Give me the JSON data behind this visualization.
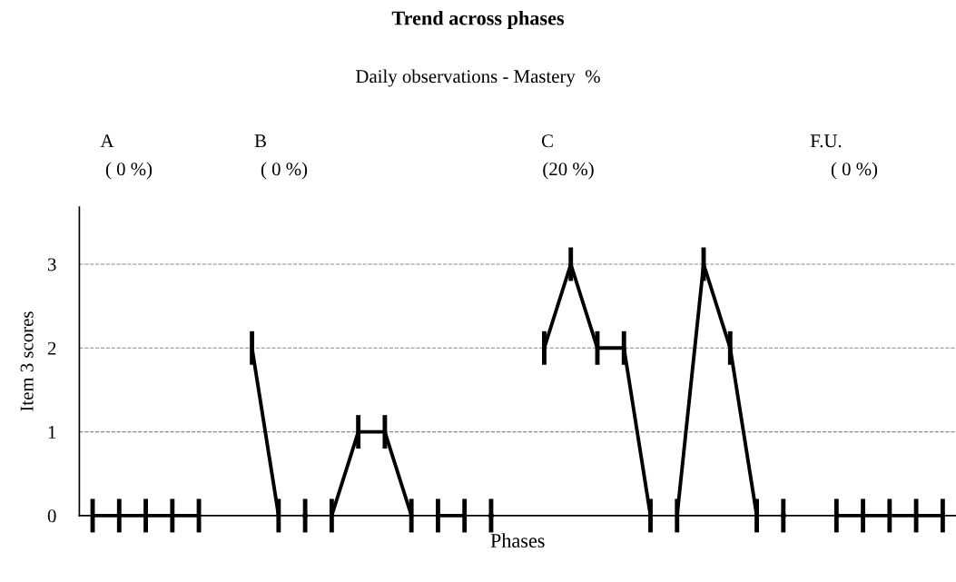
{
  "chart_data": {
    "type": "line",
    "title": "Trend across phases",
    "subtitle": "Daily observations - Mastery  %",
    "xlabel": "Phases",
    "ylabel": "Item 3 scores",
    "annotations": [
      "A",
      "( 0 %)",
      "B",
      "( 0 %)",
      "C",
      "(20 %)",
      "F.U.",
      "( 0 %)"
    ],
    "categories": [
      null,
      null,
      null,
      null,
      null,
      null,
      null,
      null,
      null,
      null,
      null,
      null,
      null,
      null,
      null,
      null,
      null,
      null,
      null,
      null,
      null,
      null,
      null,
      null,
      null,
      null,
      null,
      null,
      null,
      null,
      null,
      null,
      null
    ],
    "series": [
      {
        "color": "#000000",
        "values": [
          0,
          0,
          0,
          0,
          0,
          null,
          null,
          null,
          null,
          null,
          null,
          null,
          null,
          null,
          null,
          null,
          null,
          null,
          null,
          null,
          null,
          null,
          null,
          null,
          null,
          null,
          null,
          null,
          null,
          null,
          null,
          null,
          null
        ],
        "errors": [
          0.2,
          0.2,
          0.2,
          0.2,
          0.2,
          null,
          null,
          null,
          null,
          null,
          null,
          null,
          null,
          null,
          null,
          null,
          null,
          null,
          null,
          null,
          null,
          null,
          null,
          null,
          null,
          null,
          null,
          null,
          null,
          null,
          null,
          null,
          null
        ]
      },
      {
        "color": "#000000",
        "values": [
          null,
          null,
          null,
          null,
          null,
          null,
          2,
          0,
          null,
          null,
          null,
          null,
          null,
          null,
          null,
          null,
          null,
          null,
          null,
          null,
          null,
          null,
          null,
          null,
          null,
          null,
          null,
          null,
          null,
          null,
          null,
          null,
          null
        ],
        "errors": [
          null,
          null,
          null,
          null,
          null,
          null,
          0.2,
          0.2,
          null,
          null,
          null,
          null,
          null,
          null,
          null,
          null,
          null,
          null,
          null,
          null,
          null,
          null,
          null,
          null,
          null,
          null,
          null,
          null,
          null,
          null,
          null,
          null,
          null
        ]
      },
      {
        "type": "scatter",
        "color": "#000000",
        "values": [
          null,
          null,
          null,
          null,
          null,
          null,
          null,
          null,
          0,
          null,
          null,
          null,
          null,
          null,
          null,
          null,
          null,
          null,
          null,
          null,
          null,
          null,
          null,
          null,
          null,
          null,
          null,
          null,
          null,
          null,
          null,
          null,
          null
        ],
        "errors": [
          null,
          null,
          null,
          null,
          null,
          null,
          null,
          null,
          0.2,
          null,
          null,
          null,
          null,
          null,
          null,
          null,
          null,
          null,
          null,
          null,
          null,
          null,
          null,
          null,
          null,
          null,
          null,
          null,
          null,
          null,
          null,
          null,
          null
        ]
      },
      {
        "color": "#000000",
        "values": [
          null,
          null,
          null,
          null,
          null,
          null,
          null,
          null,
          null,
          0,
          1,
          1,
          0,
          null,
          null,
          null,
          null,
          null,
          null,
          null,
          null,
          null,
          null,
          null,
          null,
          null,
          null,
          null,
          null,
          null,
          null,
          null,
          null
        ],
        "errors": [
          null,
          null,
          null,
          null,
          null,
          null,
          null,
          null,
          null,
          0.2,
          0.2,
          0.2,
          0.2,
          null,
          null,
          null,
          null,
          null,
          null,
          null,
          null,
          null,
          null,
          null,
          null,
          null,
          null,
          null,
          null,
          null,
          null,
          null,
          null
        ]
      },
      {
        "color": "#000000",
        "values": [
          null,
          null,
          null,
          null,
          null,
          null,
          null,
          null,
          null,
          null,
          null,
          null,
          null,
          0,
          0,
          null,
          null,
          null,
          null,
          null,
          null,
          null,
          null,
          null,
          null,
          null,
          null,
          null,
          null,
          null,
          null,
          null,
          null
        ],
        "errors": [
          null,
          null,
          null,
          null,
          null,
          null,
          null,
          null,
          null,
          null,
          null,
          null,
          null,
          0.2,
          0.2,
          null,
          null,
          null,
          null,
          null,
          null,
          null,
          null,
          null,
          null,
          null,
          null,
          null,
          null,
          null,
          null,
          null,
          null
        ]
      },
      {
        "type": "scatter",
        "color": "#000000",
        "values": [
          null,
          null,
          null,
          null,
          null,
          null,
          null,
          null,
          null,
          null,
          null,
          null,
          null,
          null,
          null,
          0,
          null,
          null,
          null,
          null,
          null,
          null,
          null,
          null,
          null,
          null,
          null,
          null,
          null,
          null,
          null,
          null,
          null
        ],
        "errors": [
          null,
          null,
          null,
          null,
          null,
          null,
          null,
          null,
          null,
          null,
          null,
          null,
          null,
          null,
          null,
          0.2,
          null,
          null,
          null,
          null,
          null,
          null,
          null,
          null,
          null,
          null,
          null,
          null,
          null,
          null,
          null,
          null,
          null
        ]
      },
      {
        "color": "#000000",
        "values": [
          null,
          null,
          null,
          null,
          null,
          null,
          null,
          null,
          null,
          null,
          null,
          null,
          null,
          null,
          null,
          null,
          null,
          2,
          3,
          2,
          2,
          0,
          null,
          null,
          null,
          null,
          null,
          null,
          null,
          null,
          null,
          null,
          null
        ],
        "errors": [
          null,
          null,
          null,
          null,
          null,
          null,
          null,
          null,
          null,
          null,
          null,
          null,
          null,
          null,
          null,
          null,
          null,
          0.2,
          0.2,
          0.2,
          0.2,
          0.2,
          null,
          null,
          null,
          null,
          null,
          null,
          null,
          null,
          null,
          null,
          null
        ]
      },
      {
        "color": "#000000",
        "values": [
          null,
          null,
          null,
          null,
          null,
          null,
          null,
          null,
          null,
          null,
          null,
          null,
          null,
          null,
          null,
          null,
          null,
          null,
          null,
          null,
          null,
          null,
          0,
          3,
          2,
          0,
          null,
          null,
          null,
          null,
          null,
          null,
          null
        ],
        "errors": [
          null,
          null,
          null,
          null,
          null,
          null,
          null,
          null,
          null,
          null,
          null,
          null,
          null,
          null,
          null,
          null,
          null,
          null,
          null,
          null,
          null,
          null,
          0.2,
          0.2,
          0.2,
          0.2,
          null,
          null,
          null,
          null,
          null,
          null,
          null
        ]
      },
      {
        "type": "scatter",
        "color": "#000000",
        "values": [
          null,
          null,
          null,
          null,
          null,
          null,
          null,
          null,
          null,
          null,
          null,
          null,
          null,
          null,
          null,
          null,
          null,
          null,
          null,
          null,
          null,
          null,
          null,
          null,
          null,
          null,
          0,
          null,
          null,
          null,
          null,
          null,
          null
        ],
        "errors": [
          null,
          null,
          null,
          null,
          null,
          null,
          null,
          null,
          null,
          null,
          null,
          null,
          null,
          null,
          null,
          null,
          null,
          null,
          null,
          null,
          null,
          null,
          null,
          null,
          null,
          null,
          0.2,
          null,
          null,
          null,
          null,
          null,
          null
        ]
      },
      {
        "color": "#000000",
        "values": [
          null,
          null,
          null,
          null,
          null,
          null,
          null,
          null,
          null,
          null,
          null,
          null,
          null,
          null,
          null,
          null,
          null,
          null,
          null,
          null,
          null,
          null,
          null,
          null,
          null,
          null,
          null,
          null,
          0,
          0,
          0,
          0,
          0
        ],
        "errors": [
          null,
          null,
          null,
          null,
          null,
          null,
          null,
          null,
          null,
          null,
          null,
          null,
          null,
          null,
          null,
          null,
          null,
          null,
          null,
          null,
          null,
          null,
          null,
          null,
          null,
          null,
          null,
          null,
          0.2,
          0.2,
          0.2,
          0.2,
          0.2
        ]
      }
    ],
    "ylim": [
      0,
      3.68
    ],
    "yticks": [
      0,
      1,
      2,
      3
    ],
    "grid": "y",
    "line_style": "solid"
  }
}
